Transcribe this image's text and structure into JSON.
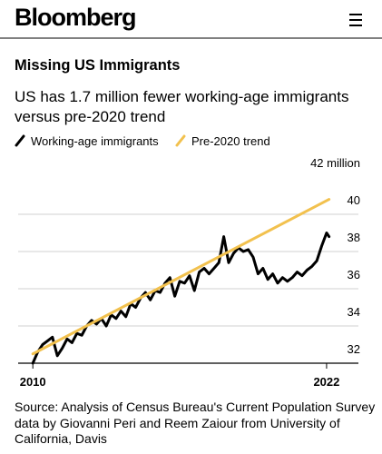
{
  "header": {
    "brand": "Bloomberg"
  },
  "chart_data": {
    "type": "line",
    "title": "Missing US Immigrants",
    "subtitle": "US has 1.7 million fewer working-age immigrants versus pre-2020 trend",
    "source": "Source: Analysis of Census Bureau's Current Population Survey data by Giovanni Peri and Reem Zaiour from University of California, Davis",
    "xlim": [
      2009.4,
      2023.3
    ],
    "xticks": [
      2010,
      2022
    ],
    "ylim": [
      32,
      42
    ],
    "yticks": [
      32,
      34,
      36,
      38,
      40,
      {
        "value": 42,
        "label": "42 million"
      }
    ],
    "grid": true,
    "series": [
      {
        "name": "Working-age immigrants",
        "color": "#000000",
        "x": [
          2010,
          2010.2,
          2010.4,
          2010.6,
          2010.8,
          2011.0,
          2011.2,
          2011.4,
          2011.6,
          2011.8,
          2012.0,
          2012.2,
          2012.4,
          2012.6,
          2012.8,
          2013.0,
          2013.2,
          2013.4,
          2013.6,
          2013.8,
          2014.0,
          2014.2,
          2014.4,
          2014.6,
          2014.8,
          2015.0,
          2015.2,
          2015.4,
          2015.6,
          2015.8,
          2016.0,
          2016.2,
          2016.4,
          2016.6,
          2016.8,
          2017.0,
          2017.2,
          2017.4,
          2017.6,
          2017.8,
          2018.0,
          2018.2,
          2018.4,
          2018.6,
          2018.8,
          2019.0,
          2019.2,
          2019.4,
          2019.6,
          2019.8,
          2020.0,
          2020.2,
          2020.4,
          2020.6,
          2020.8,
          2021.0,
          2021.2,
          2021.4,
          2021.6,
          2021.8,
          2022.0,
          2022.1
        ],
        "values": [
          32.0,
          32.6,
          33.0,
          33.2,
          33.4,
          32.4,
          32.8,
          33.3,
          33.1,
          33.6,
          33.5,
          34.0,
          34.3,
          34.1,
          34.4,
          34.0,
          34.6,
          34.4,
          34.8,
          34.5,
          35.2,
          35.0,
          35.5,
          35.8,
          35.4,
          35.9,
          35.8,
          36.3,
          36.6,
          35.6,
          36.4,
          36.3,
          36.7,
          35.9,
          36.9,
          37.1,
          36.8,
          37.1,
          37.4,
          38.8,
          37.4,
          37.9,
          38.2,
          38.0,
          38.1,
          37.7,
          36.8,
          37.1,
          36.5,
          36.8,
          36.3,
          36.6,
          36.4,
          36.6,
          36.9,
          36.7,
          37.0,
          37.2,
          37.5,
          38.3,
          39.0,
          38.8
        ]
      },
      {
        "name": "Pre-2020 trend",
        "color": "#f2c14e",
        "x": [
          2010,
          2022.1
        ],
        "values": [
          32.5,
          40.8
        ]
      }
    ]
  }
}
